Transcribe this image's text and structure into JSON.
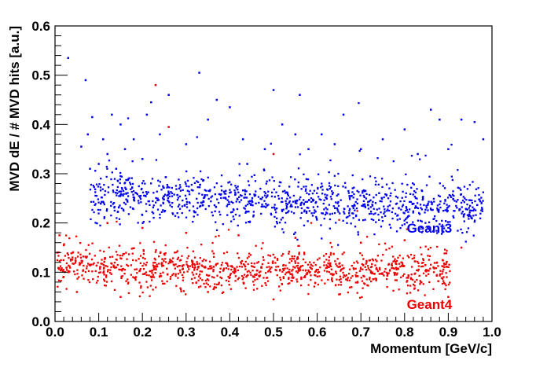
{
  "chart_data": {
    "type": "scatter",
    "xlabel": "Momentum [GeV/c]",
    "ylabel": "MVD dE / # MVD hits [a.u.]",
    "xlim": [
      0.0,
      1.0
    ],
    "ylim": [
      0.0,
      0.6
    ],
    "x_ticks": [
      "0.0",
      "0.1",
      "0.2",
      "0.3",
      "0.4",
      "0.5",
      "0.6",
      "0.7",
      "0.8",
      "0.9",
      "1.0"
    ],
    "y_ticks": [
      "0.0",
      "0.1",
      "0.2",
      "0.3",
      "0.4",
      "0.5",
      "0.6"
    ],
    "grid": false,
    "series": [
      {
        "name": "Geant3",
        "color": "#0000ee",
        "band_center": 0.245,
        "band_width": 0.025,
        "points": [
          [
            0.03,
            0.535
          ],
          [
            0.07,
            0.49
          ],
          [
            0.075,
            0.38
          ],
          [
            0.08,
            0.31
          ],
          [
            0.085,
            0.415
          ],
          [
            0.1,
            0.32
          ],
          [
            0.11,
            0.37
          ],
          [
            0.12,
            0.34
          ],
          [
            0.13,
            0.42
          ],
          [
            0.15,
            0.4
          ],
          [
            0.16,
            0.35
          ],
          [
            0.18,
            0.37
          ],
          [
            0.21,
            0.42
          ],
          [
            0.22,
            0.445
          ],
          [
            0.24,
            0.38
          ],
          [
            0.26,
            0.46
          ],
          [
            0.3,
            0.36
          ],
          [
            0.33,
            0.505
          ],
          [
            0.35,
            0.41
          ],
          [
            0.37,
            0.45
          ],
          [
            0.4,
            0.435
          ],
          [
            0.43,
            0.37
          ],
          [
            0.48,
            0.35
          ],
          [
            0.5,
            0.47
          ],
          [
            0.52,
            0.4
          ],
          [
            0.55,
            0.38
          ],
          [
            0.56,
            0.46
          ],
          [
            0.58,
            0.35
          ],
          [
            0.61,
            0.38
          ],
          [
            0.64,
            0.36
          ],
          [
            0.66,
            0.42
          ],
          [
            0.7,
            0.35
          ],
          [
            0.75,
            0.37
          ],
          [
            0.8,
            0.39
          ],
          [
            0.83,
            0.34
          ],
          [
            0.86,
            0.43
          ],
          [
            0.88,
            0.41
          ],
          [
            0.9,
            0.35
          ],
          [
            0.93,
            0.41
          ],
          [
            0.96,
            0.405
          ],
          [
            0.98,
            0.37
          ],
          [
            0.06,
            0.355
          ],
          [
            0.14,
            0.31
          ],
          [
            0.2,
            0.33
          ],
          [
            0.44,
            0.32
          ]
        ]
      },
      {
        "name": "Geant4",
        "color": "#ee0000",
        "band_center": 0.1,
        "band_width": 0.02,
        "points": [
          [
            0.23,
            0.48
          ],
          [
            0.26,
            0.395
          ],
          [
            0.5,
            0.34
          ],
          [
            0.005,
            0.14
          ],
          [
            0.01,
            0.175
          ],
          [
            0.02,
            0.155
          ],
          [
            0.05,
            0.06
          ],
          [
            0.12,
            0.2
          ],
          [
            0.2,
            0.19
          ],
          [
            0.3,
            0.18
          ],
          [
            0.42,
            0.175
          ],
          [
            0.55,
            0.17
          ],
          [
            0.7,
            0.16
          ],
          [
            0.8,
            0.165
          ],
          [
            0.93,
            0.15
          ],
          [
            0.5,
            0.045
          ],
          [
            0.9,
            0.05
          ],
          [
            0.35,
            0.06
          ],
          [
            0.65,
            0.055
          ],
          [
            0.15,
            0.05
          ]
        ]
      }
    ],
    "series_labels": [
      {
        "text": "Geant3",
        "x": 0.805,
        "y": 0.19
      },
      {
        "text": "Geant4",
        "x": 0.805,
        "y": 0.035
      }
    ]
  }
}
